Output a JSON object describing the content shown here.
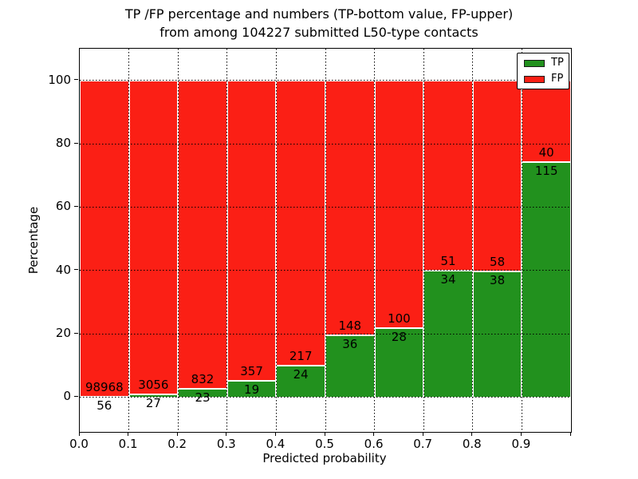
{
  "figure": {
    "title_line1": "TP /FP percentage and numbers (TP-bottom value, FP-upper)",
    "title_line2": "from among 104227 submitted L50-type contacts",
    "xlabel": "Predicted probability",
    "ylabel": "Percentage"
  },
  "legend": {
    "items": [
      {
        "label": "TP",
        "color": "#22911e"
      },
      {
        "label": "FP",
        "color": "#fb1f15"
      }
    ]
  },
  "chart_data": {
    "type": "bar",
    "stacked": true,
    "normalized_to_percent": true,
    "title": "TP /FP percentage and numbers (TP-bottom value, FP-upper) from among 104227 submitted L50-type contacts",
    "xlabel": "Predicted probability",
    "ylabel": "Percentage",
    "total_submitted": 104227,
    "categories": [
      "0.0-0.1",
      "0.1-0.2",
      "0.2-0.3",
      "0.3-0.4",
      "0.4-0.5",
      "0.5-0.6",
      "0.6-0.7",
      "0.7-0.8",
      "0.8-0.9",
      "0.9-1.0"
    ],
    "bin_starts": [
      0.0,
      0.1,
      0.2,
      0.3,
      0.4,
      0.5,
      0.6,
      0.7,
      0.8,
      0.9
    ],
    "bin_width": 0.1,
    "series": [
      {
        "name": "TP",
        "color": "#22911e",
        "counts": [
          56,
          27,
          23,
          19,
          24,
          36,
          28,
          34,
          38,
          115
        ],
        "percent": [
          0.06,
          0.88,
          2.69,
          5.05,
          9.96,
          19.57,
          21.88,
          40.0,
          39.58,
          74.19
        ]
      },
      {
        "name": "FP",
        "color": "#fb1f15",
        "counts": [
          98968,
          3056,
          832,
          357,
          217,
          148,
          100,
          51,
          58,
          40
        ],
        "percent": [
          99.94,
          99.12,
          97.31,
          94.95,
          90.04,
          80.43,
          78.12,
          60.0,
          60.42,
          25.81
        ]
      }
    ],
    "annotation_rule": "FP count printed just above TP/FP boundary, TP count printed just below it",
    "xlim": [
      0,
      1
    ],
    "ylim": [
      -11,
      110
    ],
    "yticks": [
      0,
      20,
      40,
      60,
      80,
      100
    ],
    "xtick_labels": [
      "0.0",
      "0.1",
      "0.2",
      "0.3",
      "0.4",
      "0.5",
      "0.6",
      "0.7",
      "0.8",
      "0.9"
    ],
    "grid": "dotted",
    "grid_color": "#000000",
    "legend_position": "upper right",
    "bar_edge_color": "#ffffff"
  }
}
